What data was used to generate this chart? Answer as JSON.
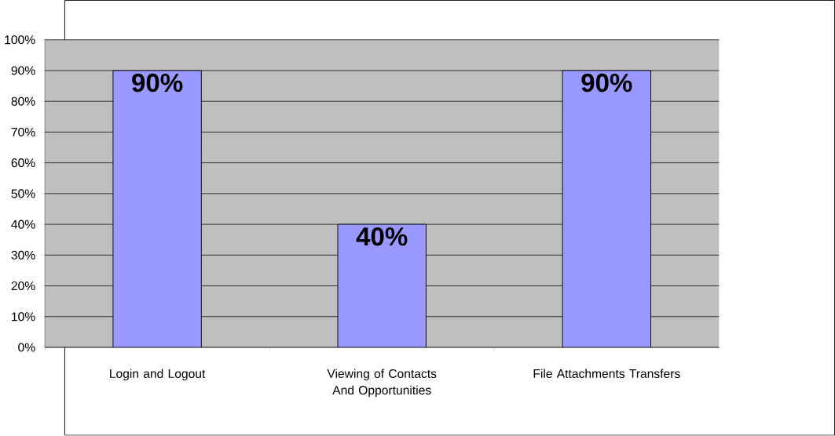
{
  "chart_data": {
    "type": "bar",
    "categories": [
      "Login and Logout",
      "Viewing of Contacts And Opportunities",
      "File Attachments Transfers"
    ],
    "values": [
      90,
      40,
      90
    ],
    "value_labels": [
      "90%",
      "40%",
      "90%"
    ],
    "color": "#9999ff",
    "ylim": [
      0,
      100
    ],
    "yticks": [
      {
        "value": 0,
        "label": "0%"
      },
      {
        "value": 10,
        "label": "10%"
      },
      {
        "value": 20,
        "label": "20%"
      },
      {
        "value": 30,
        "label": "30%"
      },
      {
        "value": 40,
        "label": "40%"
      },
      {
        "value": 50,
        "label": "50%"
      },
      {
        "value": 60,
        "label": "60%"
      },
      {
        "value": 70,
        "label": "70%"
      },
      {
        "value": 80,
        "label": "80%"
      },
      {
        "value": 90,
        "label": "90%"
      },
      {
        "value": 100,
        "label": "100%"
      }
    ],
    "grid": "y"
  }
}
